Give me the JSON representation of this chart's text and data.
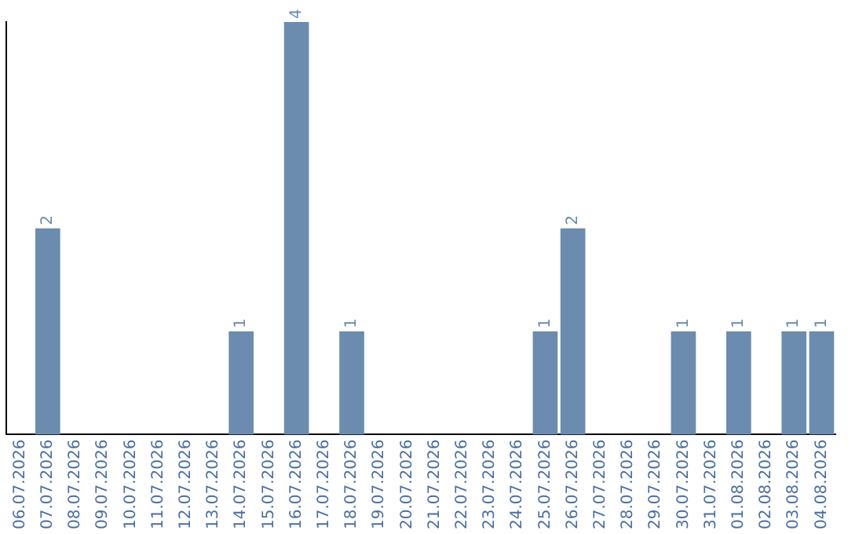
{
  "chart_data": {
    "type": "bar",
    "categories": [
      "06.07.2026",
      "07.07.2026",
      "08.07.2026",
      "09.07.2026",
      "10.07.2026",
      "11.07.2026",
      "12.07.2026",
      "13.07.2026",
      "14.07.2026",
      "15.07.2026",
      "16.07.2026",
      "17.07.2026",
      "18.07.2026",
      "19.07.2026",
      "20.07.2026",
      "21.07.2026",
      "22.07.2026",
      "23.07.2026",
      "24.07.2026",
      "25.07.2026",
      "26.07.2026",
      "27.07.2026",
      "28.07.2026",
      "29.07.2026",
      "30.07.2026",
      "31.07.2026",
      "01.08.2026",
      "02.08.2026",
      "03.08.2026",
      "04.08.2026"
    ],
    "values": [
      0,
      2,
      0,
      0,
      0,
      0,
      0,
      0,
      1,
      0,
      4,
      0,
      1,
      0,
      0,
      0,
      0,
      0,
      0,
      1,
      2,
      0,
      0,
      0,
      1,
      0,
      1,
      0,
      1,
      1
    ],
    "value_labels": [
      null,
      "2",
      null,
      null,
      null,
      null,
      null,
      null,
      "1",
      null,
      "4",
      null,
      "1",
      null,
      null,
      null,
      null,
      null,
      null,
      "1",
      "2",
      null,
      null,
      null,
      "1",
      null,
      "1",
      null,
      "1",
      "1"
    ],
    "color": "#6b8cae",
    "grid": false,
    "legend": false,
    "tick_labels": "x"
  }
}
